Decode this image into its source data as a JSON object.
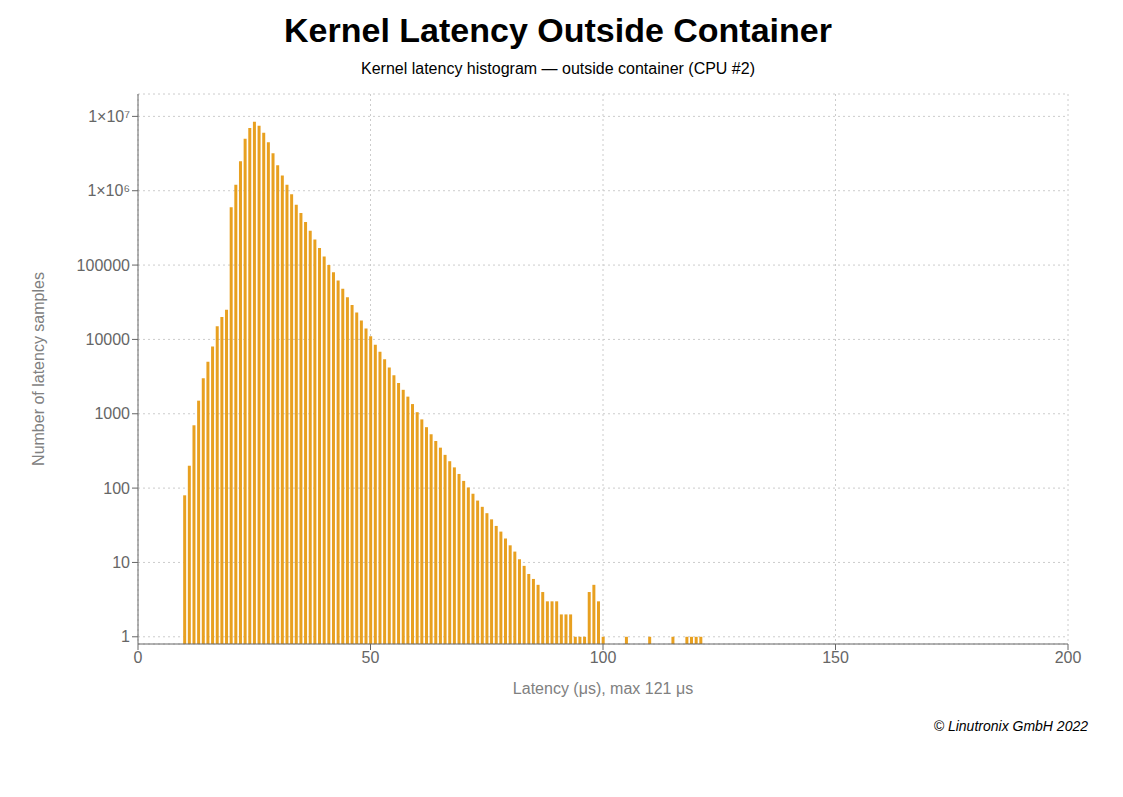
{
  "chart_data": {
    "type": "bar",
    "title": "Kernel Latency Outside Container",
    "subtitle": "Kernel latency histogram — outside container (CPU #2)",
    "x_label": "Latency (μs), max 121 μs",
    "y_label": "Number of latency samples",
    "annotations": [
      "© Linutronix GmbH 2022"
    ],
    "color": "#E8A020",
    "log": "y",
    "grid": true,
    "xlim": [
      0,
      200
    ],
    "xticks": [
      0,
      50,
      100,
      150,
      200
    ],
    "ylim": [
      0.8,
      20000000
    ],
    "yticks": [
      1,
      10,
      100,
      1000,
      10000,
      100000,
      {
        "value": 1000000,
        "label": "1×10⁶"
      },
      {
        "value": 10000000,
        "label": "1×10⁷"
      }
    ],
    "x": [
      10,
      11,
      12,
      13,
      14,
      15,
      16,
      17,
      18,
      19,
      20,
      21,
      22,
      23,
      24,
      25,
      26,
      27,
      28,
      29,
      30,
      31,
      32,
      33,
      34,
      35,
      36,
      37,
      38,
      39,
      40,
      41,
      42,
      43,
      44,
      45,
      46,
      47,
      48,
      49,
      50,
      51,
      52,
      53,
      54,
      55,
      56,
      57,
      58,
      59,
      60,
      61,
      62,
      63,
      64,
      65,
      66,
      67,
      68,
      69,
      70,
      71,
      72,
      73,
      74,
      75,
      76,
      77,
      78,
      79,
      80,
      81,
      82,
      83,
      84,
      85,
      86,
      87,
      88,
      89,
      90,
      91,
      92,
      93,
      94,
      95,
      96,
      97,
      98,
      99,
      100,
      105,
      110,
      115,
      118,
      119,
      120,
      121
    ],
    "values": [
      80,
      200,
      700,
      1500,
      3000,
      5000,
      8000,
      15000,
      20000,
      25000,
      600000,
      1200000,
      2500000,
      5000000,
      7000000,
      8500000,
      7500000,
      6000000,
      4500000,
      3200000,
      2200000,
      1600000,
      1200000,
      900000,
      650000,
      500000,
      380000,
      290000,
      220000,
      170000,
      130000,
      100000,
      80000,
      62000,
      48000,
      37000,
      29000,
      23000,
      18000,
      14000,
      11000,
      8500,
      6800,
      5400,
      4200,
      3300,
      2600,
      2100,
      1700,
      1350,
      1050,
      840,
      660,
      530,
      430,
      350,
      280,
      230,
      190,
      155,
      125,
      102,
      84,
      68,
      56,
      46,
      38,
      31,
      26,
      21,
      17,
      14,
      11,
      9,
      7,
      6,
      5,
      4,
      3,
      3,
      3,
      2,
      2,
      2,
      1,
      1,
      1,
      4,
      5,
      3,
      1,
      1,
      1,
      1,
      1,
      1,
      1,
      1
    ]
  }
}
